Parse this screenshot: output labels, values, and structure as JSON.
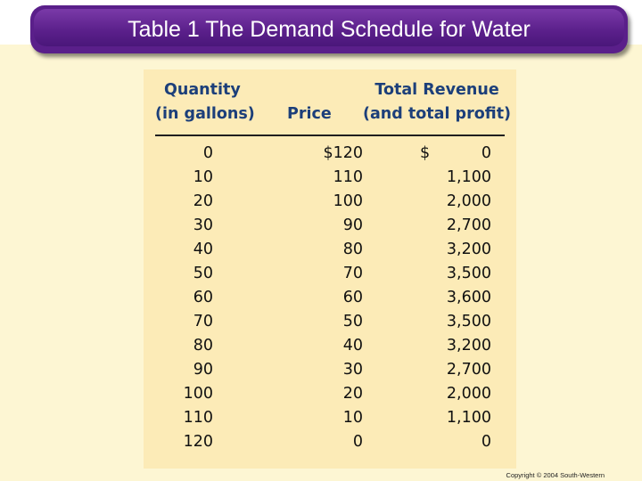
{
  "title": "Table 1 The Demand Schedule for Water",
  "table": {
    "headers": {
      "quantity_line1": "Quantity",
      "quantity_line2": "(in gallons)",
      "price": "Price",
      "revenue_line1": "Total Revenue",
      "revenue_line2": "(and total profit)"
    },
    "rows": [
      {
        "quantity": "0",
        "price": "$120",
        "dollar": "$",
        "revenue": "0"
      },
      {
        "quantity": "10",
        "price": "110",
        "dollar": "",
        "revenue": "1,100"
      },
      {
        "quantity": "20",
        "price": "100",
        "dollar": "",
        "revenue": "2,000"
      },
      {
        "quantity": "30",
        "price": "90",
        "dollar": "",
        "revenue": "2,700"
      },
      {
        "quantity": "40",
        "price": "80",
        "dollar": "",
        "revenue": "3,200"
      },
      {
        "quantity": "50",
        "price": "70",
        "dollar": "",
        "revenue": "3,500"
      },
      {
        "quantity": "60",
        "price": "60",
        "dollar": "",
        "revenue": "3,600"
      },
      {
        "quantity": "70",
        "price": "50",
        "dollar": "",
        "revenue": "3,500"
      },
      {
        "quantity": "80",
        "price": "40",
        "dollar": "",
        "revenue": "3,200"
      },
      {
        "quantity": "90",
        "price": "30",
        "dollar": "",
        "revenue": "2,700"
      },
      {
        "quantity": "100",
        "price": "20",
        "dollar": "",
        "revenue": "2,000"
      },
      {
        "quantity": "110",
        "price": "10",
        "dollar": "",
        "revenue": "1,100"
      },
      {
        "quantity": "120",
        "price": "0",
        "dollar": "",
        "revenue": "0"
      }
    ]
  },
  "copyright": "Copyright © 2004 South-Western",
  "colors": {
    "title_bar": "#5a1f8a",
    "header_text": "#1c3f7a",
    "table_background": "#fcebb7",
    "page_background": "#fdf6d3"
  }
}
